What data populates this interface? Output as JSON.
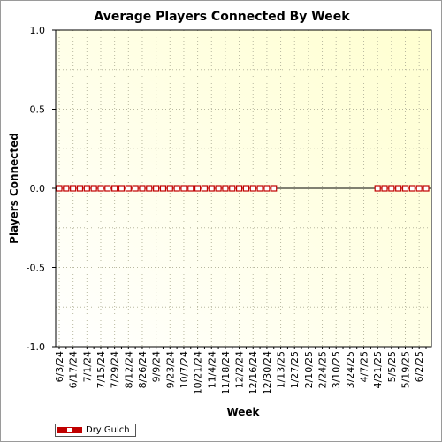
{
  "chart_data": {
    "type": "line",
    "title": "Average Players Connected By Week",
    "xlabel": "Week",
    "ylabel": "Players Connected",
    "ylim": [
      -1.0,
      1.0
    ],
    "y_ticks": [
      "1.0",
      "0.5",
      "0.0",
      "-0.5",
      "-1.0"
    ],
    "y_tick_values": [
      1.0,
      0.5,
      0.0,
      -0.5,
      -1.0
    ],
    "x_tick_labels": [
      "6/3/24",
      "6/17/24",
      "7/1/24",
      "7/15/24",
      "7/29/24",
      "8/12/24",
      "8/26/24",
      "9/9/24",
      "9/23/24",
      "10/7/24",
      "10/21/24",
      "11/4/24",
      "11/18/24",
      "12/2/24",
      "12/16/24",
      "12/30/24",
      "1/13/25",
      "1/27/25",
      "2/10/25",
      "2/24/25",
      "3/10/25",
      "3/24/25",
      "4/7/25",
      "4/21/25",
      "5/5/25",
      "5/19/25",
      "6/2/25"
    ],
    "x": [
      "6/3/24",
      "6/10/24",
      "6/17/24",
      "6/24/24",
      "7/1/24",
      "7/8/24",
      "7/15/24",
      "7/22/24",
      "7/29/24",
      "8/5/24",
      "8/12/24",
      "8/19/24",
      "8/26/24",
      "9/2/24",
      "9/9/24",
      "9/16/24",
      "9/23/24",
      "9/30/24",
      "10/7/24",
      "10/14/24",
      "10/21/24",
      "10/28/24",
      "11/4/24",
      "11/11/24",
      "11/18/24",
      "11/25/24",
      "12/2/24",
      "12/9/24",
      "12/16/24",
      "12/23/24",
      "12/30/24",
      "1/6/25",
      "1/13/25",
      "1/20/25",
      "1/27/25",
      "2/3/25",
      "2/10/25",
      "2/17/25",
      "2/24/25",
      "3/3/25",
      "3/10/25",
      "3/17/25",
      "3/24/25",
      "3/31/25",
      "4/7/25",
      "4/14/25",
      "4/21/25",
      "4/28/25",
      "5/5/25",
      "5/12/25",
      "5/19/25",
      "5/26/25",
      "6/2/25",
      "6/9/25"
    ],
    "series": [
      {
        "name": "Dry Gulch",
        "color": "#c00000",
        "marker": "square-hollow",
        "values": [
          0,
          0,
          0,
          0,
          0,
          0,
          0,
          0,
          0,
          0,
          0,
          0,
          0,
          0,
          0,
          0,
          0,
          0,
          0,
          0,
          0,
          0,
          0,
          0,
          0,
          0,
          0,
          0,
          0,
          0,
          0,
          0,
          null,
          null,
          null,
          null,
          null,
          null,
          null,
          null,
          null,
          null,
          null,
          null,
          null,
          null,
          0,
          0,
          0,
          0,
          0,
          0,
          0,
          0
        ]
      }
    ],
    "grid": true,
    "legend_position": "bottom-left",
    "plot_background": [
      "#ffffff",
      "#ffffd0"
    ]
  }
}
